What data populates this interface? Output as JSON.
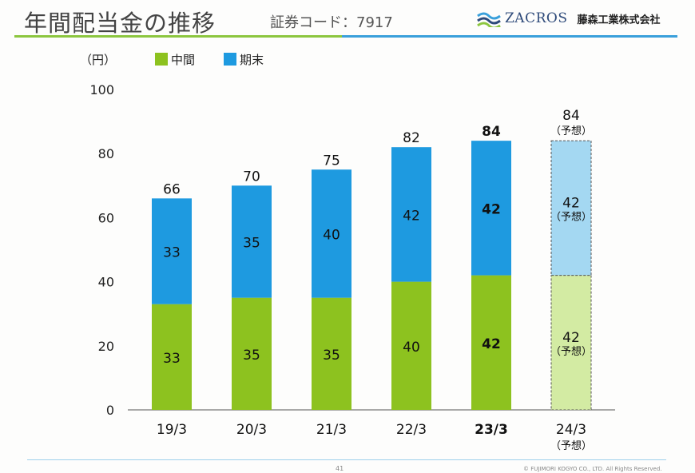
{
  "header": {
    "title": "年間配当金の推移",
    "code": "証券コード：7917",
    "brand": "ZACROS",
    "company": "藤森工業株式会社"
  },
  "footer": {
    "page": "41",
    "copyright": "© FUJIMORI KOGYO CO., LTD.  All Rights Reserved."
  },
  "colors": {
    "interim": "#8dc21f",
    "year_end": "#1e9ae0",
    "interim_forecast": "#d3eba3",
    "year_end_forecast": "#a4d8f2"
  },
  "chart_data": {
    "type": "bar",
    "stacked": true,
    "unit_label": "（円）",
    "ylim": [
      0,
      100
    ],
    "yticks": [
      0,
      20,
      40,
      60,
      80,
      100
    ],
    "categories": [
      "19/3",
      "20/3",
      "21/3",
      "22/3",
      "23/3",
      "24/3"
    ],
    "category_notes": [
      "",
      "",
      "",
      "",
      "",
      "（予想）"
    ],
    "highlight_index": 4,
    "forecast_index": 5,
    "forecast_label": "（予想）",
    "series": [
      {
        "name": "中間",
        "values": [
          33,
          35,
          35,
          40,
          42,
          42
        ]
      },
      {
        "name": "期末",
        "values": [
          33,
          35,
          40,
          42,
          42,
          42
        ]
      }
    ],
    "totals": [
      66,
      70,
      75,
      82,
      84,
      84
    ],
    "legend_position": "top-left",
    "grid": false
  }
}
